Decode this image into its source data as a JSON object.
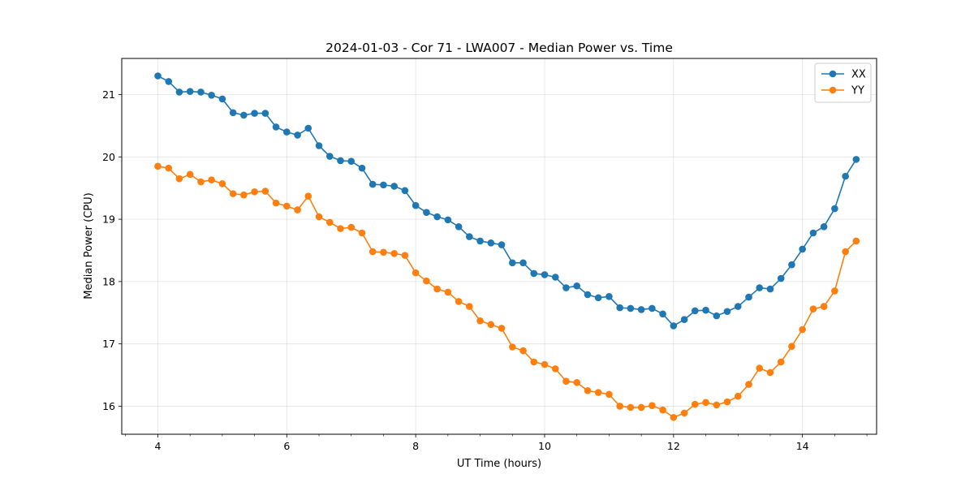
{
  "chart_data": {
    "type": "line",
    "title": "2024-01-03 - Cor 71 - LWA007 - Median Power vs. Time",
    "xlabel": "UT Time (hours)",
    "ylabel": "Median Power (CPU)",
    "xlim": [
      3.44,
      15.15
    ],
    "ylim": [
      15.55,
      21.58
    ],
    "xticks": [
      4,
      6,
      8,
      10,
      12,
      14
    ],
    "yticks": [
      16,
      17,
      18,
      19,
      20,
      21
    ],
    "x_minor_step": 0.5,
    "grid": true,
    "legend_position": "top-right",
    "x": [
      4.0,
      4.167,
      4.333,
      4.5,
      4.667,
      4.833,
      5.0,
      5.167,
      5.333,
      5.5,
      5.667,
      5.833,
      6.0,
      6.167,
      6.333,
      6.5,
      6.667,
      6.833,
      7.0,
      7.167,
      7.333,
      7.5,
      7.667,
      7.833,
      8.0,
      8.167,
      8.333,
      8.5,
      8.667,
      8.833,
      9.0,
      9.167,
      9.333,
      9.5,
      9.667,
      9.833,
      10.0,
      10.167,
      10.333,
      10.5,
      10.667,
      10.833,
      11.0,
      11.167,
      11.333,
      11.5,
      11.667,
      11.833,
      12.0,
      12.167,
      12.333,
      12.5,
      12.667,
      12.833,
      13.0,
      13.167,
      13.333,
      13.5,
      13.667,
      13.833,
      14.0,
      14.167,
      14.333,
      14.5,
      14.667,
      14.833
    ],
    "series": [
      {
        "name": "XX",
        "color": "#1f77b4",
        "values": [
          21.3,
          21.21,
          21.04,
          21.05,
          21.04,
          20.99,
          20.93,
          20.71,
          20.67,
          20.7,
          20.7,
          20.48,
          20.4,
          20.35,
          20.46,
          20.18,
          20.01,
          19.94,
          19.93,
          19.82,
          19.56,
          19.55,
          19.53,
          19.46,
          19.22,
          19.11,
          19.04,
          18.99,
          18.88,
          18.72,
          18.65,
          18.62,
          18.59,
          18.3,
          18.3,
          18.13,
          18.11,
          18.07,
          17.9,
          17.93,
          17.79,
          17.74,
          17.76,
          17.58,
          17.57,
          17.55,
          17.57,
          17.48,
          17.29,
          17.39,
          17.53,
          17.54,
          17.45,
          17.52,
          17.6,
          17.75,
          17.9,
          17.88,
          18.05,
          18.27,
          18.52,
          18.78,
          18.88,
          19.17,
          19.69,
          19.96
        ]
      },
      {
        "name": "YY",
        "color": "#ff7f0e",
        "values": [
          19.85,
          19.82,
          19.65,
          19.72,
          19.6,
          19.63,
          19.57,
          19.41,
          19.39,
          19.44,
          19.45,
          19.26,
          19.21,
          19.15,
          19.37,
          19.04,
          18.95,
          18.85,
          18.87,
          18.78,
          18.48,
          18.47,
          18.45,
          18.42,
          18.14,
          18.01,
          17.88,
          17.83,
          17.68,
          17.6,
          17.37,
          17.31,
          17.25,
          16.95,
          16.89,
          16.71,
          16.67,
          16.6,
          16.4,
          16.38,
          16.25,
          16.22,
          16.19,
          16.0,
          15.98,
          15.98,
          16.01,
          15.94,
          15.82,
          15.89,
          16.03,
          16.06,
          16.02,
          16.07,
          16.16,
          16.35,
          16.61,
          16.54,
          16.71,
          16.96,
          17.23,
          17.56,
          17.6,
          17.85,
          18.48,
          18.65
        ]
      }
    ]
  }
}
